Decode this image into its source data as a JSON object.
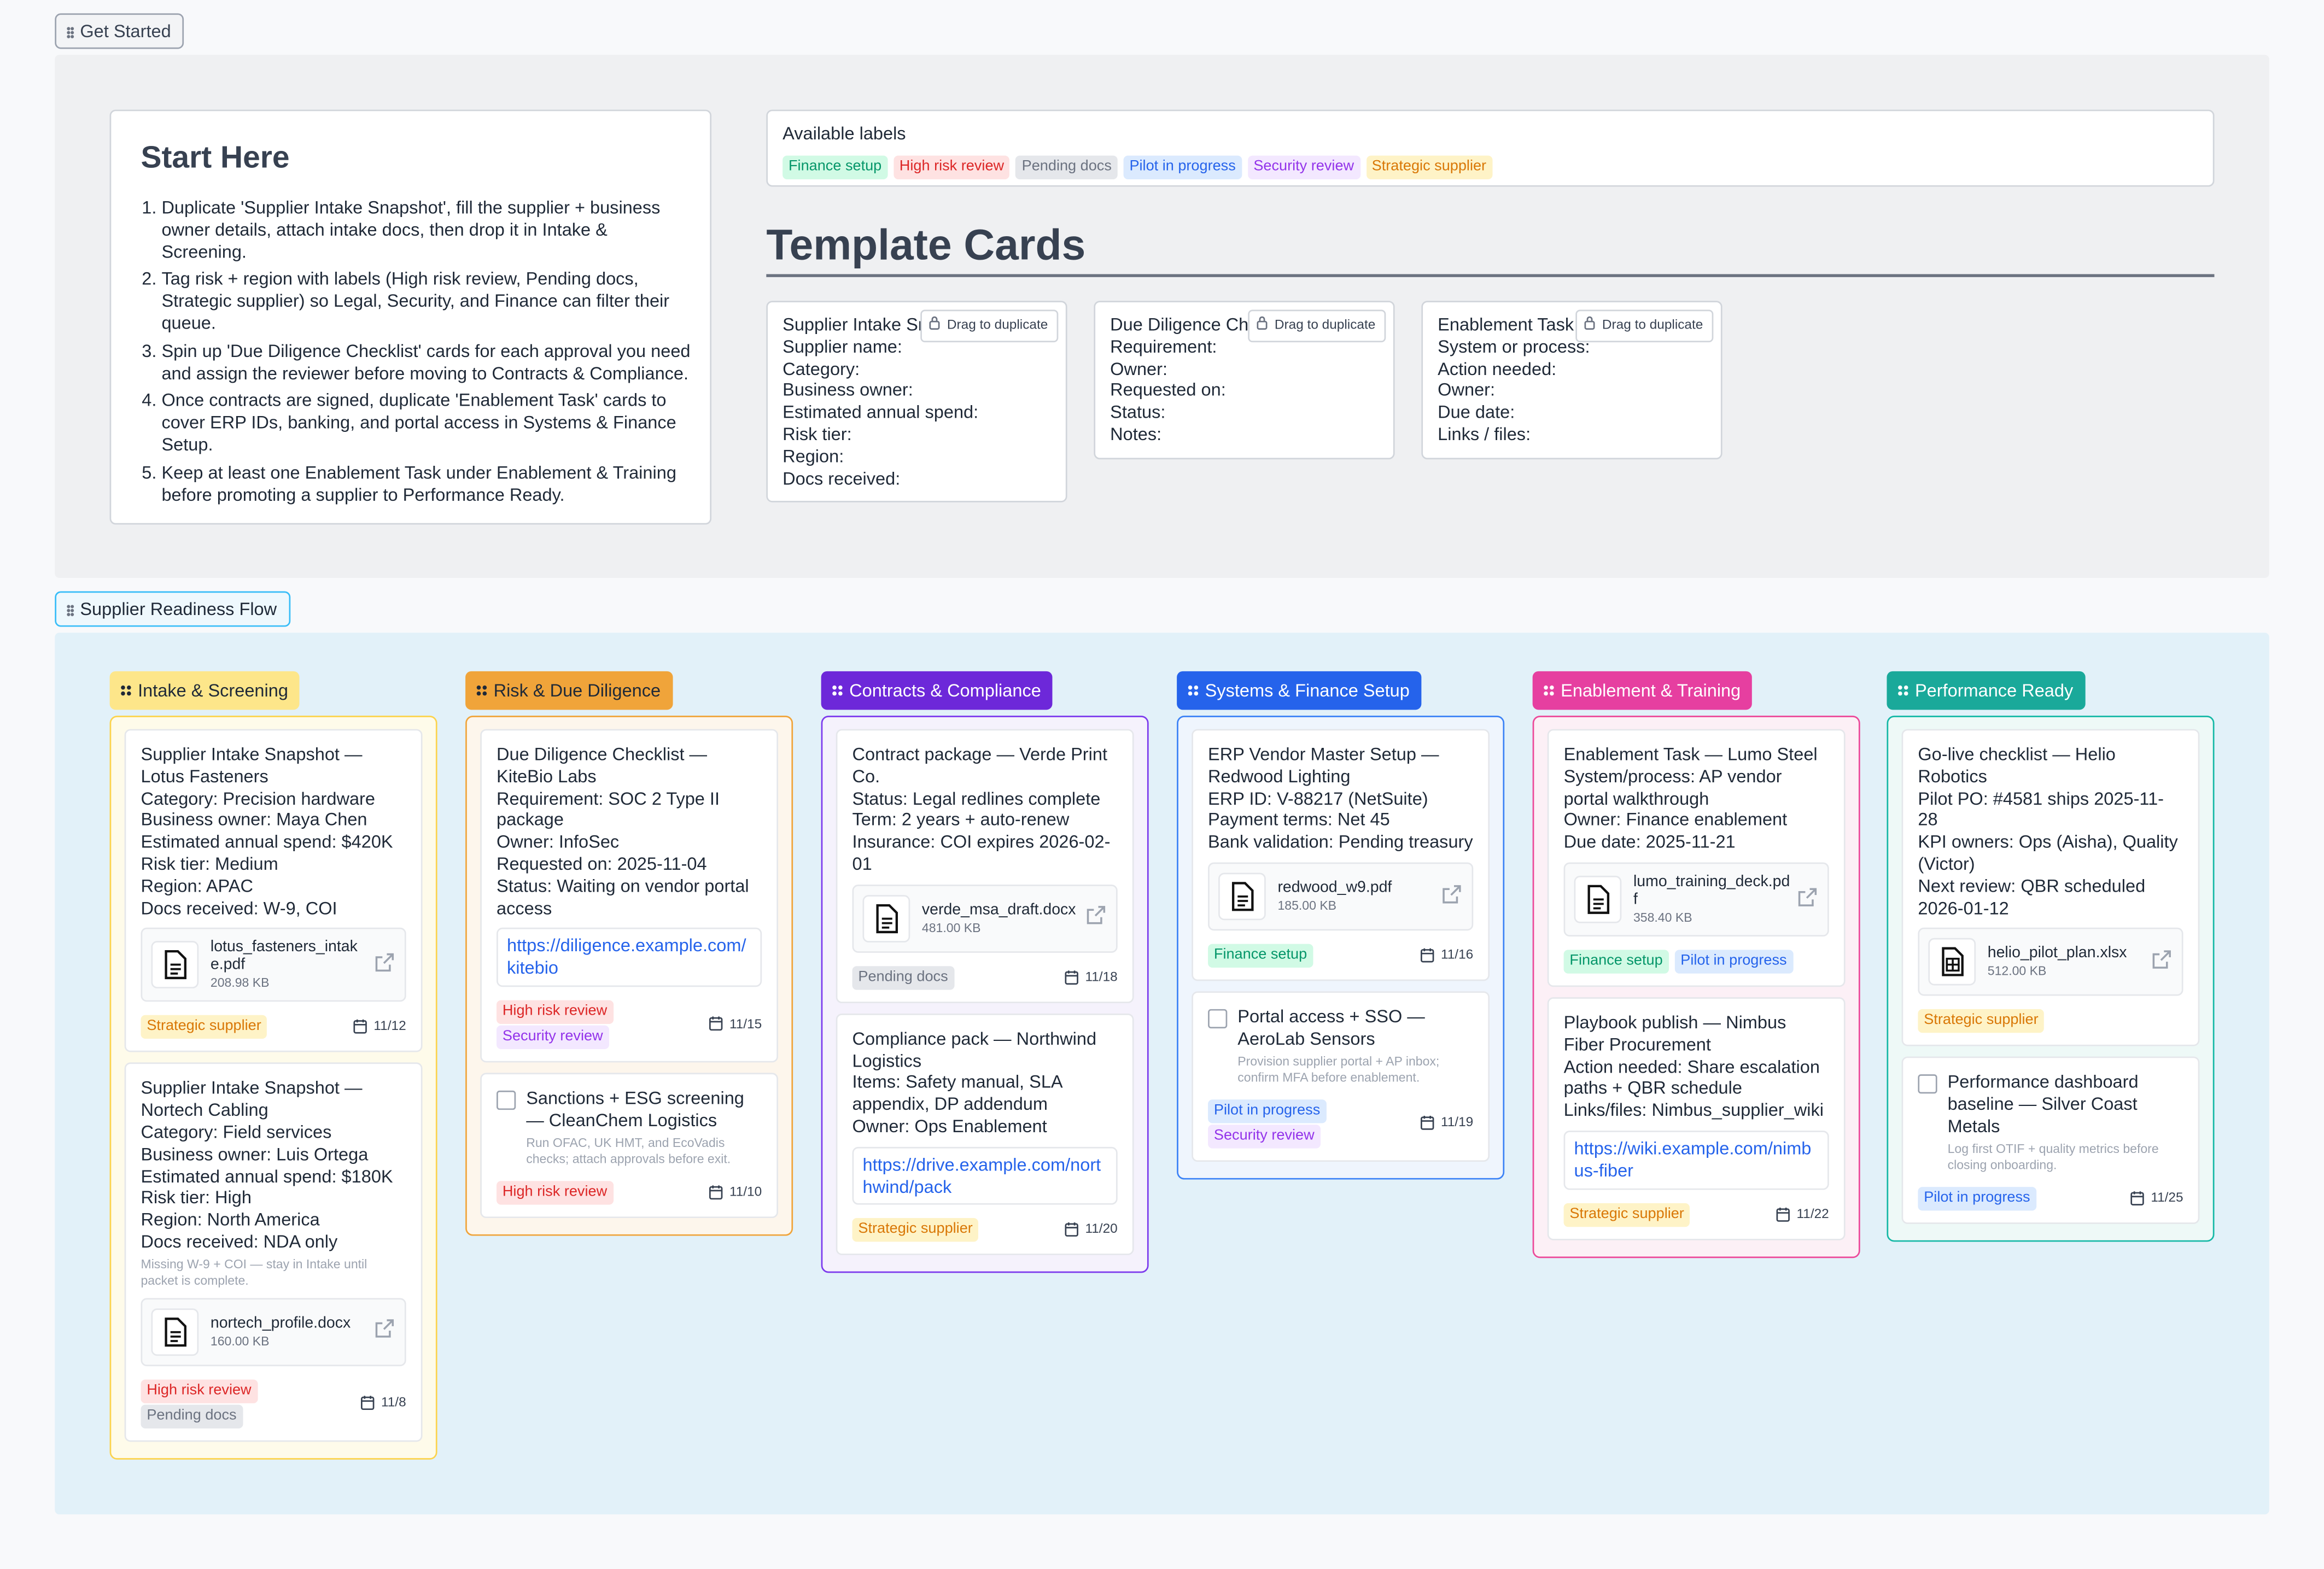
{
  "get_started": {
    "label": "Get Started",
    "start_here": {
      "title": "Start Here",
      "steps": [
        "Duplicate 'Supplier Intake Snapshot', fill the supplier + business owner details, attach intake docs, then drop it in Intake & Screening.",
        "Tag risk + region with labels (High risk review, Pending docs, Strategic supplier) so Legal, Security, and Finance can filter their queue.",
        "Spin up 'Due Diligence Checklist' cards for each approval you need and assign the reviewer before moving to Contracts & Compliance.",
        "Once contracts are signed, duplicate 'Enablement Task' cards to cover ERP IDs, banking, and portal access in Systems & Finance Setup.",
        "Keep at least one Enablement Task under Enablement & Training before promoting a supplier to Performance Ready."
      ]
    },
    "available_labels": {
      "title": "Available labels",
      "labels": [
        {
          "name": "Finance setup",
          "color": "#059669",
          "background": "#d1fae5"
        },
        {
          "name": "High risk review",
          "color": "#dc2626",
          "background": "#fee2e2"
        },
        {
          "name": "Pending docs",
          "color": "#6b7280",
          "background": "#e5e7eb"
        },
        {
          "name": "Pilot in progress",
          "color": "#2563eb",
          "background": "#dbeafe"
        },
        {
          "name": "Security review",
          "color": "#9333ea",
          "background": "#f3e8ff"
        },
        {
          "name": "Strategic supplier",
          "color": "#d97706",
          "background": "#fef3c7"
        }
      ]
    },
    "template_cards": {
      "title": "Template Cards",
      "cards": [
        {
          "title": "Supplier Intake Snapshot",
          "hint": "Drag to duplicate",
          "fields": [
            "Supplier name:",
            "Category:",
            "Business owner:",
            "Estimated annual spend:",
            "Risk tier:",
            "Region:",
            "Docs received:"
          ]
        },
        {
          "title": "Due Diligence Checklist",
          "hint": "Drag to duplicate",
          "fields": [
            "Requirement:",
            "Owner:",
            "Requested on:",
            "Status:",
            "Notes:"
          ]
        },
        {
          "title": "Enablement Task",
          "hint": "Drag to duplicate",
          "fields": [
            "System or process:",
            "Action needed:",
            "Owner:",
            "Due date:",
            "Links / files:"
          ]
        }
      ]
    }
  },
  "flow": {
    "label": "Supplier Readiness Flow",
    "columns": [
      {
        "title": "Intake & Screening",
        "color": "#fde68a",
        "text_color": "#1f2937",
        "border": "#fcd34d",
        "background": "#fefbea",
        "cards": [
          {
            "lines": [
              "Supplier Intake Snapshot — Lotus Fasteners",
              "Category: Precision hardware",
              "Business owner: Maya Chen",
              "Estimated annual spend: $420K",
              "Risk tier: Medium",
              "Region: APAC",
              "Docs received: W-9, COI"
            ],
            "attachment": {
              "name": "lotus_fasteners_intake.pdf",
              "size": "208.98 KB"
            },
            "labels": [
              "Strategic supplier"
            ],
            "date": "11/12"
          },
          {
            "lines": [
              "Supplier Intake Snapshot — Nortech Cabling",
              "Category: Field services",
              "Business owner: Luis Ortega",
              "Estimated annual spend: $180K",
              "Risk tier: High",
              "Region: North America",
              "Docs received: NDA only"
            ],
            "note": "Missing W-9 + COI — stay in Intake until packet is complete.",
            "attachment": {
              "name": "nortech_profile.docx",
              "size": "160.00 KB"
            },
            "labels": [
              "High risk review",
              "Pending docs"
            ],
            "date": "11/8"
          }
        ]
      },
      {
        "title": "Risk & Due Diligence",
        "color": "#f0a43a",
        "text_color": "#1f2937",
        "border": "#f0a43a",
        "background": "#fdf6ec",
        "cards": [
          {
            "lines": [
              "Due Diligence Checklist — KiteBio Labs",
              "Requirement: SOC 2 Type II package",
              "Owner: InfoSec",
              "Requested on: 2025-11-04",
              "Status: Waiting on vendor portal access"
            ],
            "link": "https://diligence.example.com/kitebio",
            "labels": [
              "High risk review",
              "Security review"
            ],
            "date": "11/15"
          },
          {
            "checkbox": true,
            "lines": [
              "Sanctions + ESG screening — CleanChem Logistics"
            ],
            "note": "Run OFAC, UK HMT, and EcoVadis checks; attach approvals before exit.",
            "labels": [
              "High risk review"
            ],
            "date": "11/10"
          }
        ]
      },
      {
        "title": "Contracts & Compliance",
        "color": "#6d28d9",
        "text_color": "#ffffff",
        "border": "#7c3aed",
        "background": "#f5f2fc",
        "cards": [
          {
            "lines": [
              "Contract package — Verde Print Co.",
              "Status: Legal redlines complete",
              "Term: 2 years + auto-renew",
              "Insurance: COI expires 2026-02-01"
            ],
            "attachment": {
              "name": "verde_msa_draft.docx",
              "size": "481.00 KB"
            },
            "labels": [
              "Pending docs"
            ],
            "date": "11/18"
          },
          {
            "lines": [
              "Compliance pack — Northwind Logistics",
              "Items: Safety manual, SLA appendix, DP addendum",
              "Owner: Ops Enablement"
            ],
            "link": "https://drive.example.com/northwind/pack",
            "labels": [
              "Strategic supplier"
            ],
            "date": "11/20"
          }
        ]
      },
      {
        "title": "Systems & Finance Setup",
        "color": "#2563eb",
        "text_color": "#ffffff",
        "border": "#3b82f6",
        "background": "#eff5fd",
        "cards": [
          {
            "lines": [
              "ERP Vendor Master Setup — Redwood Lighting",
              "ERP ID: V-88217 (NetSuite)",
              "Payment terms: Net 45",
              "Bank validation: Pending treasury"
            ],
            "attachment": {
              "name": "redwood_w9.pdf",
              "size": "185.00 KB"
            },
            "labels": [
              "Finance setup"
            ],
            "date": "11/16"
          },
          {
            "checkbox": true,
            "lines": [
              "Portal access + SSO — AeroLab Sensors"
            ],
            "note": "Provision supplier portal + AP inbox; confirm MFA before enablement.",
            "labels": [
              "Pilot in progress",
              "Security review"
            ],
            "date": "11/19"
          }
        ]
      },
      {
        "title": "Enablement & Training",
        "color": "#e63fa0",
        "text_color": "#ffffff",
        "border": "#ec4899",
        "background": "#fcf0f6",
        "cards": [
          {
            "lines": [
              "Enablement Task — Lumo Steel",
              "System/process: AP vendor portal walkthrough",
              "Owner: Finance enablement",
              "Due date: 2025-11-21"
            ],
            "attachment": {
              "name": "lumo_training_deck.pdf",
              "size": "358.40 KB"
            },
            "labels": [
              "Finance setup",
              "Pilot in progress"
            ]
          },
          {
            "lines": [
              "Playbook publish — Nimbus Fiber Procurement",
              "Action needed: Share escalation paths + QBR schedule",
              "Links/files: Nimbus_supplier_wiki"
            ],
            "link": "https://wiki.example.com/nimbus-fiber",
            "labels": [
              "Strategic supplier"
            ],
            "date": "11/22"
          }
        ]
      },
      {
        "title": "Performance Ready",
        "color": "#1aa99a",
        "text_color": "#ffffff",
        "border": "#14b8a6",
        "background": "#eef9f7",
        "cards": [
          {
            "lines": [
              "Go-live checklist — Helio Robotics",
              "Pilot PO: #4581 ships 2025-11-28",
              "KPI owners: Ops (Aisha), Quality (Victor)",
              "Next review: QBR scheduled 2026-01-12"
            ],
            "attachment": {
              "name": "helio_pilot_plan.xlsx",
              "size": "512.00 KB",
              "kind": "sheet"
            },
            "labels": [
              "Strategic supplier"
            ]
          },
          {
            "checkbox": true,
            "lines": [
              "Performance dashboard baseline — Silver Coast Metals"
            ],
            "note": "Log first OTIF + quality metrics before closing onboarding.",
            "labels": [
              "Pilot in progress"
            ],
            "date": "11/25"
          }
        ]
      }
    ]
  }
}
